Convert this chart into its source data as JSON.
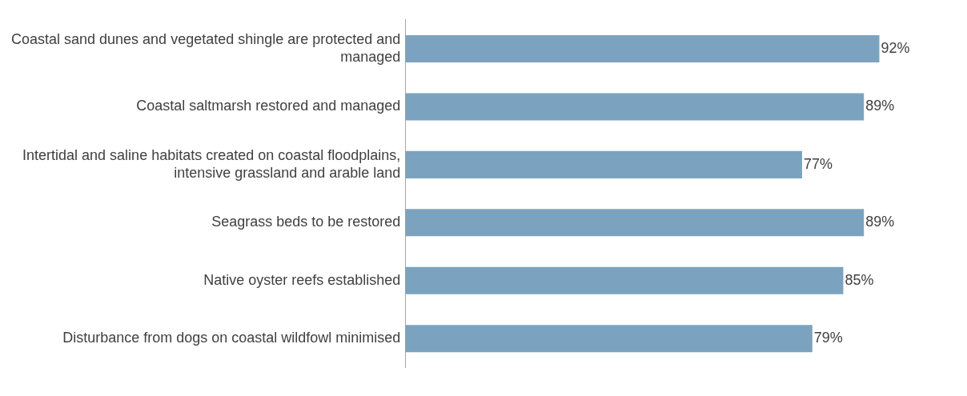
{
  "chart_data": {
    "type": "bar",
    "orientation": "horizontal",
    "categories": [
      "Coastal sand dunes and vegetated shingle are protected and managed",
      "Coastal saltmarsh restored and managed",
      "Intertidal and saline habitats created on coastal floodplains, intensive grassland and arable land",
      "Seagrass beds to be restored",
      "Native oyster reefs established",
      "Disturbance from dogs on coastal wildfowl minimised"
    ],
    "values": [
      92,
      89,
      77,
      89,
      85,
      79
    ],
    "value_labels": [
      "92%",
      "89%",
      "77%",
      "89%",
      "85%",
      "79%"
    ],
    "color": "#7ba3bf",
    "tick_labels": "y",
    "legend": false
  }
}
